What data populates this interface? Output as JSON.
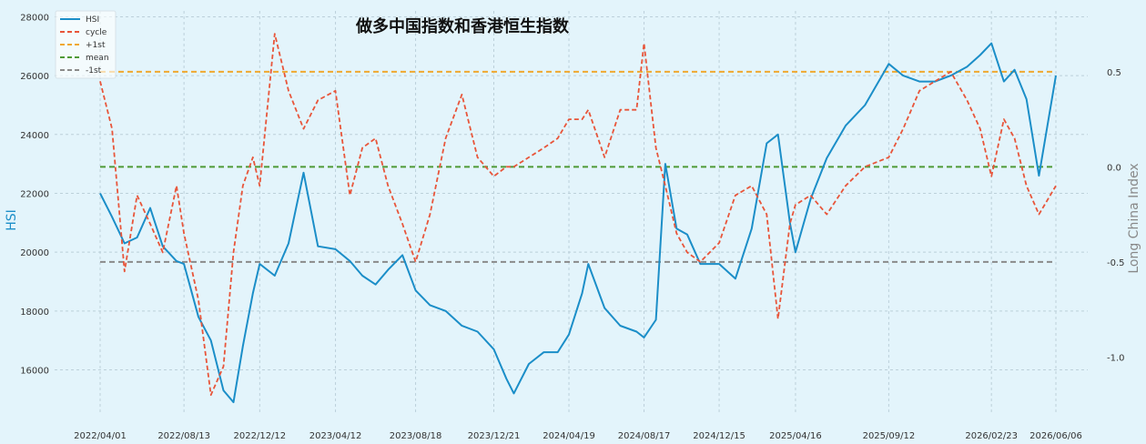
{
  "chart_data": {
    "type": "line",
    "title": "做多中国指数和香港恒生指数",
    "ylabel": "HSI",
    "y2label": "Long China Index",
    "grid": true,
    "legend_position": "top-left",
    "ylim": [
      14500,
      28200
    ],
    "y2lim": [
      -1.3,
      0.82
    ],
    "yticks": [
      16000,
      18000,
      20000,
      22000,
      24000,
      26000,
      28000
    ],
    "y2ticks": [
      -1.0,
      -0.5,
      0.0,
      0.5
    ],
    "y2tick_labels": [
      "-1.0",
      "-0.5",
      "0.0",
      "0.5"
    ],
    "x_tick_labels": [
      "2022/04/01",
      "2022/08/13",
      "2022/12/12",
      "2023/04/12",
      "2023/08/18",
      "2023/12/21",
      "2024/04/19",
      "2024/08/17",
      "2024/12/15",
      "2025/04/16",
      "2025/09/12",
      "2026/02/23",
      "2026/06/06"
    ],
    "series": [
      {
        "name": "HSI",
        "axis": "left",
        "color": "#1b8ec8",
        "style": "solid",
        "x": [
          "2022/04/01",
          "2022/04/20",
          "2022/05/10",
          "2022/05/30",
          "2022/06/20",
          "2022/07/10",
          "2022/08/01",
          "2022/08/13",
          "2022/09/05",
          "2022/09/25",
          "2022/10/15",
          "2022/10/31",
          "2022/11/15",
          "2022/12/01",
          "2022/12/12",
          "2023/01/05",
          "2023/01/27",
          "2023/02/20",
          "2023/03/15",
          "2023/04/12",
          "2023/05/05",
          "2023/05/25",
          "2023/06/15",
          "2023/07/05",
          "2023/07/28",
          "2023/08/18",
          "2023/09/10",
          "2023/10/05",
          "2023/10/31",
          "2023/11/25",
          "2023/12/21",
          "2024/01/10",
          "2024/01/22",
          "2024/02/15",
          "2024/03/10",
          "2024/04/01",
          "2024/04/19",
          "2024/05/10",
          "2024/05/20",
          "2024/06/15",
          "2024/07/10",
          "2024/08/05",
          "2024/08/17",
          "2024/09/05",
          "2024/09/20",
          "2024/10/08",
          "2024/10/25",
          "2024/11/15",
          "2024/12/15",
          "2025/01/10",
          "2025/02/05",
          "2025/03/01",
          "2025/03/19",
          "2025/04/07",
          "2025/04/16",
          "2025/05/10",
          "2025/06/05",
          "2025/07/05",
          "2025/08/05",
          "2025/09/12",
          "2025/10/05",
          "2025/10/31",
          "2025/11/25",
          "2025/12/20",
          "2026/01/15",
          "2026/02/05",
          "2026/02/23",
          "2026/03/15",
          "2026/04/01",
          "2026/04/20",
          "2026/05/10",
          "2026/06/06"
        ],
        "y": [
          22000,
          21200,
          20300,
          20500,
          21500,
          20200,
          19700,
          19600,
          17800,
          17000,
          15300,
          14900,
          16800,
          18600,
          19600,
          19200,
          20300,
          22700,
          20200,
          20100,
          19700,
          19200,
          18900,
          19400,
          19900,
          18700,
          18200,
          18000,
          17500,
          17300,
          16700,
          15700,
          15200,
          16200,
          16600,
          16600,
          17200,
          18600,
          19600,
          18100,
          17500,
          17300,
          17100,
          17700,
          23000,
          20800,
          20600,
          19600,
          19600,
          19100,
          20800,
          23700,
          24000,
          21000,
          20000,
          21800,
          23200,
          24300,
          25000,
          26400,
          26000,
          25800,
          25800,
          26000,
          26300,
          26700,
          27100,
          25800,
          26200,
          25200,
          22600,
          26000
        ]
      },
      {
        "name": "cycle",
        "axis": "right",
        "color": "#e8553a",
        "style": "dashed",
        "x": [
          "2022/04/01",
          "2022/04/20",
          "2022/05/10",
          "2022/05/30",
          "2022/06/20",
          "2022/07/10",
          "2022/08/01",
          "2022/08/13",
          "2022/09/05",
          "2022/09/25",
          "2022/10/15",
          "2022/10/31",
          "2022/11/15",
          "2022/12/01",
          "2022/12/12",
          "2023/01/05",
          "2023/01/27",
          "2023/02/20",
          "2023/03/15",
          "2023/04/12",
          "2023/05/05",
          "2023/05/25",
          "2023/06/15",
          "2023/07/05",
          "2023/07/28",
          "2023/08/18",
          "2023/09/10",
          "2023/10/05",
          "2023/10/31",
          "2023/11/25",
          "2023/12/21",
          "2024/01/10",
          "2024/01/22",
          "2024/02/15",
          "2024/03/10",
          "2024/04/01",
          "2024/04/19",
          "2024/05/10",
          "2024/05/20",
          "2024/06/15",
          "2024/07/10",
          "2024/08/05",
          "2024/08/17",
          "2024/09/05",
          "2024/09/20",
          "2024/10/08",
          "2024/10/25",
          "2024/11/15",
          "2024/12/15",
          "2025/01/10",
          "2025/02/05",
          "2025/03/01",
          "2025/03/19",
          "2025/04/07",
          "2025/04/16",
          "2025/05/10",
          "2025/06/05",
          "2025/07/05",
          "2025/08/05",
          "2025/09/12",
          "2025/10/05",
          "2025/10/31",
          "2025/11/25",
          "2025/12/20",
          "2026/01/15",
          "2026/02/05",
          "2026/02/23",
          "2026/03/15",
          "2026/04/01",
          "2026/04/20",
          "2026/05/10",
          "2026/06/06"
        ],
        "y": [
          0.45,
          0.2,
          -0.55,
          -0.15,
          -0.3,
          -0.45,
          -0.1,
          -0.35,
          -0.7,
          -1.2,
          -1.05,
          -0.45,
          -0.1,
          0.05,
          -0.1,
          0.7,
          0.4,
          0.2,
          0.35,
          0.4,
          -0.15,
          0.1,
          0.15,
          -0.1,
          -0.3,
          -0.5,
          -0.25,
          0.15,
          0.38,
          0.05,
          -0.05,
          0.0,
          0.0,
          0.05,
          0.1,
          0.15,
          0.25,
          0.25,
          0.3,
          0.05,
          0.3,
          0.3,
          0.65,
          0.1,
          -0.1,
          -0.35,
          -0.45,
          -0.5,
          -0.4,
          -0.15,
          -0.1,
          -0.25,
          -0.8,
          -0.3,
          -0.2,
          -0.15,
          -0.25,
          -0.1,
          0.0,
          0.05,
          0.2,
          0.4,
          0.45,
          0.5,
          0.35,
          0.2,
          -0.05,
          0.25,
          0.15,
          -0.1,
          -0.25,
          -0.1
        ]
      },
      {
        "name": "+1st",
        "axis": "right",
        "color": "#f0a830",
        "style": "dashed",
        "value": 0.5
      },
      {
        "name": "mean",
        "axis": "right",
        "color": "#4f9a36",
        "style": "dashed",
        "value": 0.0
      },
      {
        "name": "-1st",
        "axis": "right",
        "color": "#8a8a8a",
        "style": "dashed",
        "value": -0.5
      }
    ]
  }
}
